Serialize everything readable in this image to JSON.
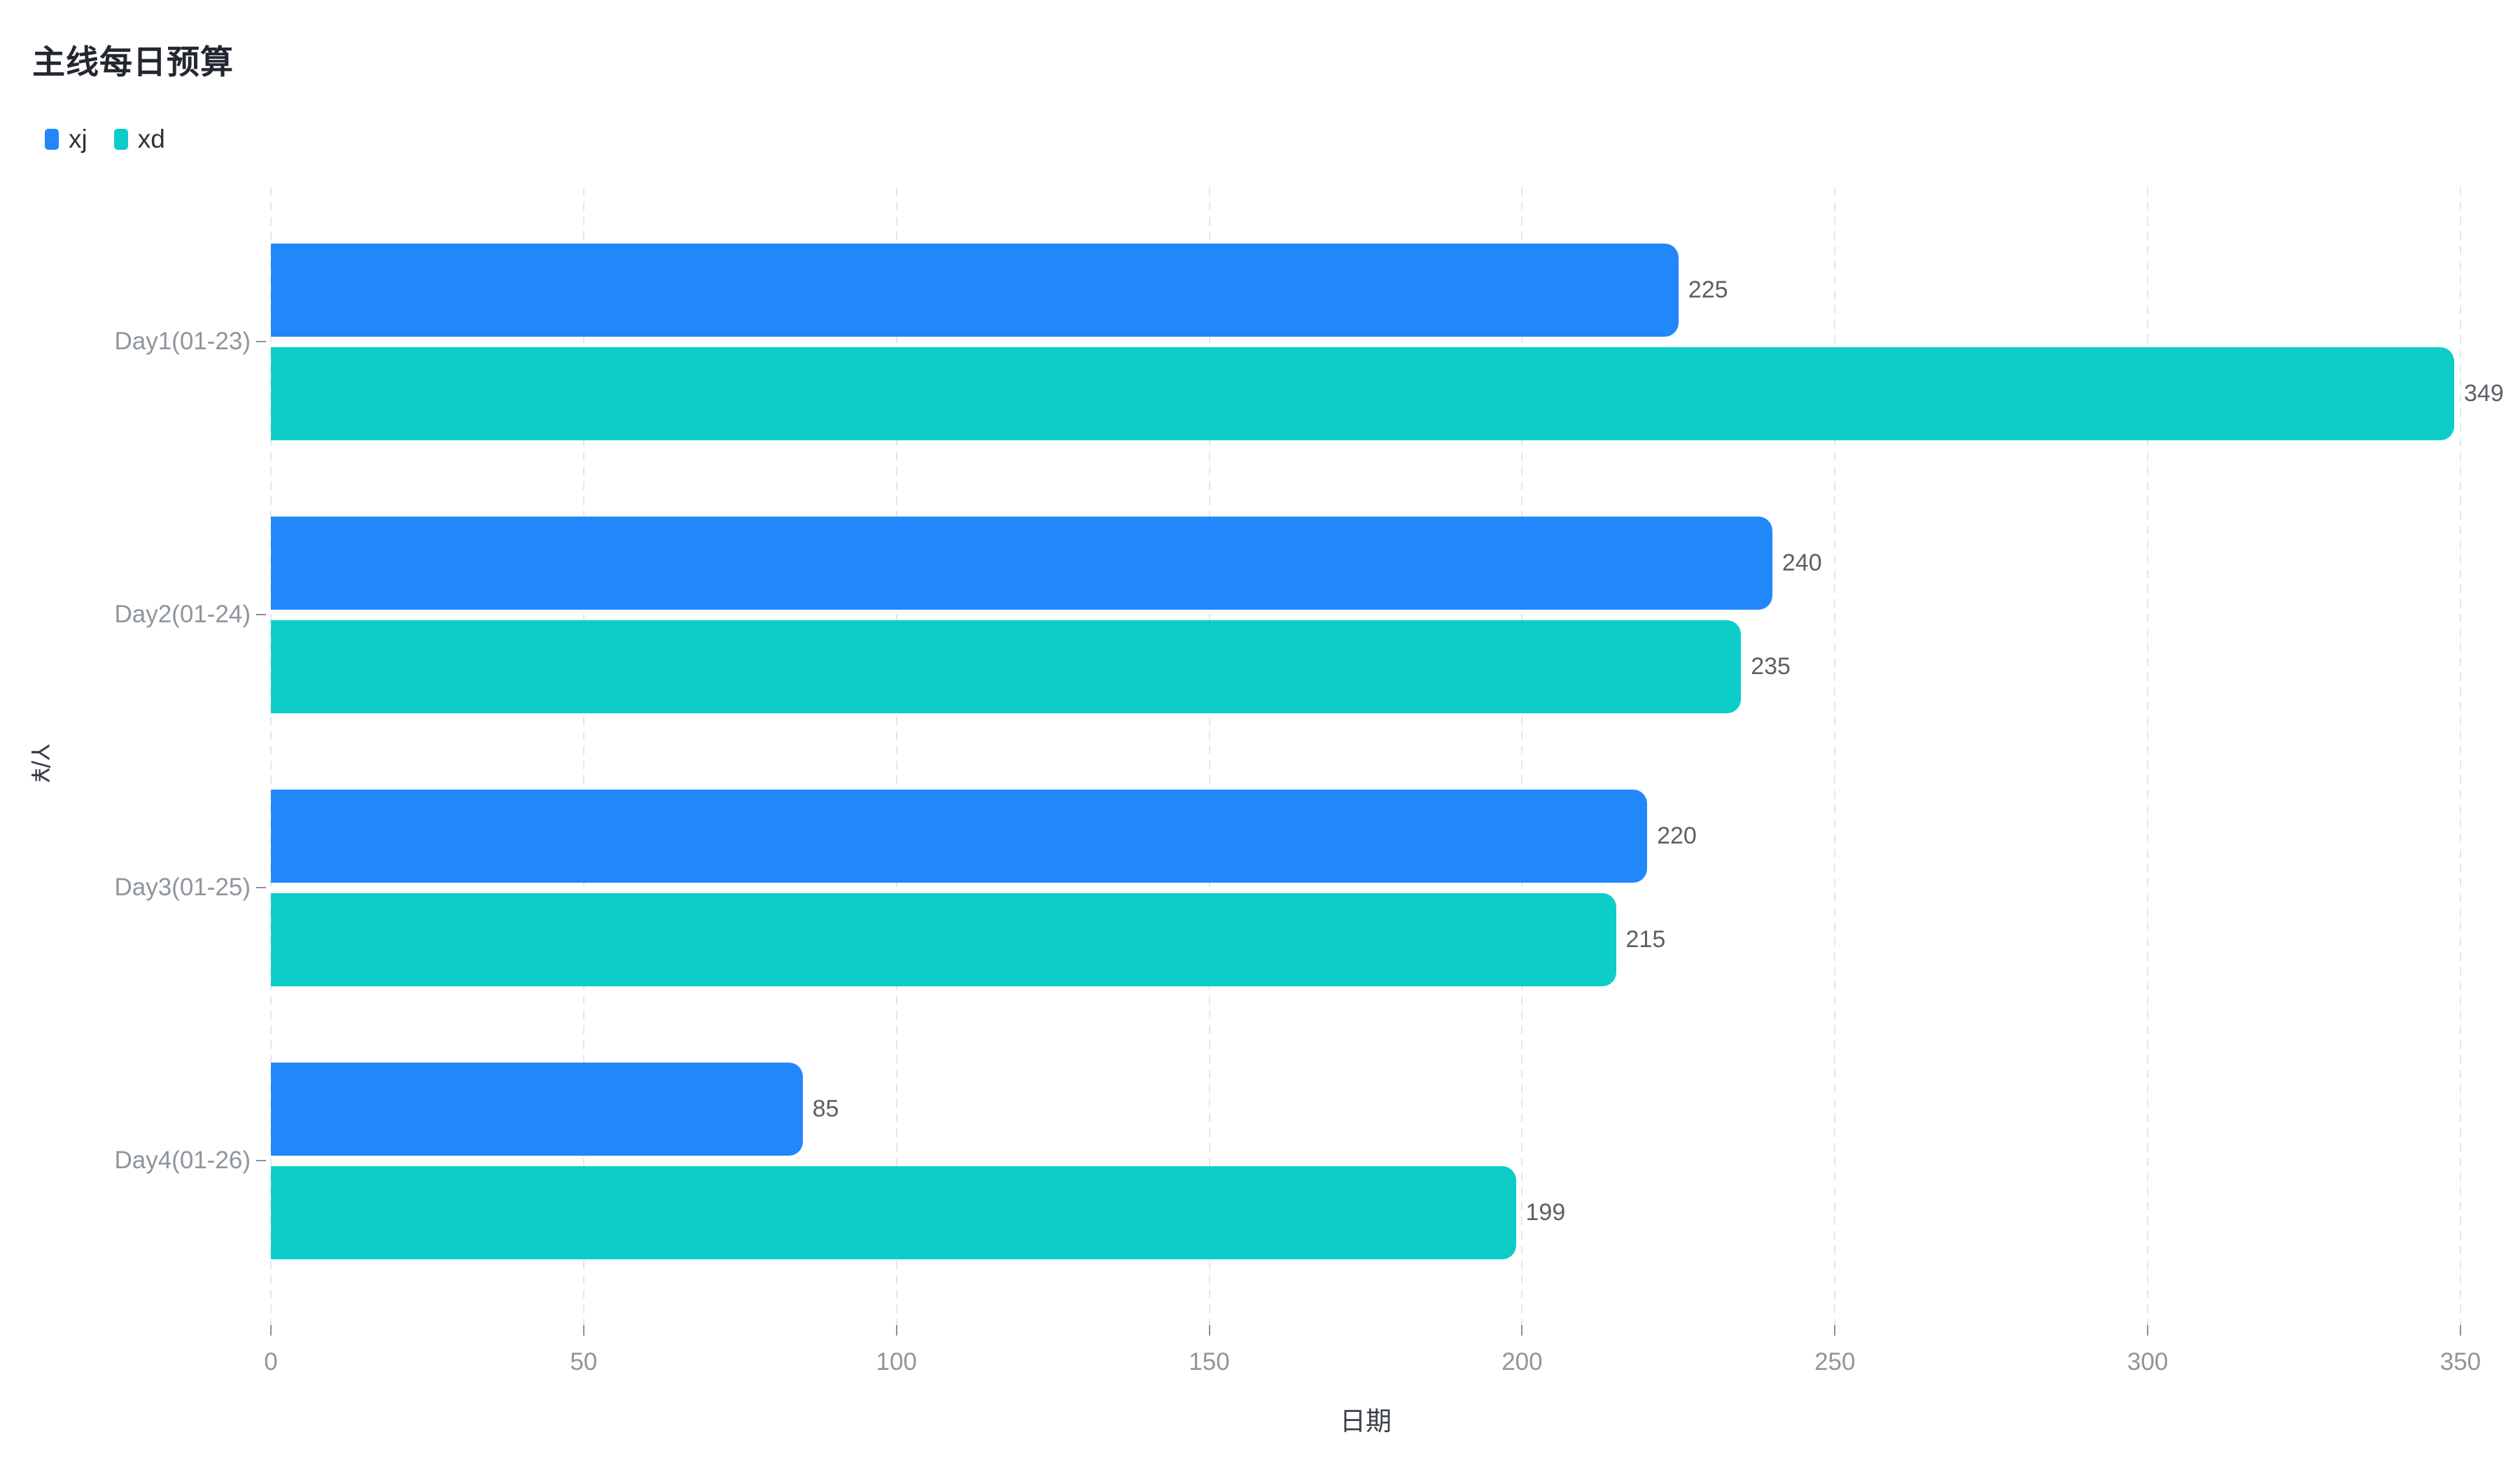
{
  "title": "主线每日预算",
  "colors": {
    "background": "#ffffff",
    "title_text": "#23272f",
    "legend_text": "#2f333b",
    "axis_title_text": "#3a3f4a",
    "axis_muted_text": "#8f959c",
    "value_label_text": "#5c5f65",
    "gridline": "#e3e5e8",
    "tick": "#8b9095",
    "series_xj": "#2187fb",
    "series_xd": "#0dcdc9"
  },
  "chart_data": {
    "type": "bar",
    "orientation": "horizontal",
    "title": "主线每日预算",
    "categories": [
      "Day1(01-23)",
      "Day2(01-24)",
      "Day3(01-25)",
      "Day4(01-26)"
    ],
    "series": [
      {
        "name": "xj",
        "color": "#2187fb",
        "values": [
          225,
          240,
          220,
          85
        ]
      },
      {
        "name": "xd",
        "color": "#0dcdc9",
        "values": [
          349,
          235,
          215,
          199
        ]
      }
    ],
    "xlabel": "日期",
    "ylabel": "Y/¥",
    "xlim": [
      0,
      350
    ],
    "xticks": [
      0,
      50,
      100,
      150,
      200,
      250,
      300,
      350
    ],
    "grid": "vertical-dashed",
    "legend_position": "top-left",
    "value_labels": "outside-end"
  }
}
